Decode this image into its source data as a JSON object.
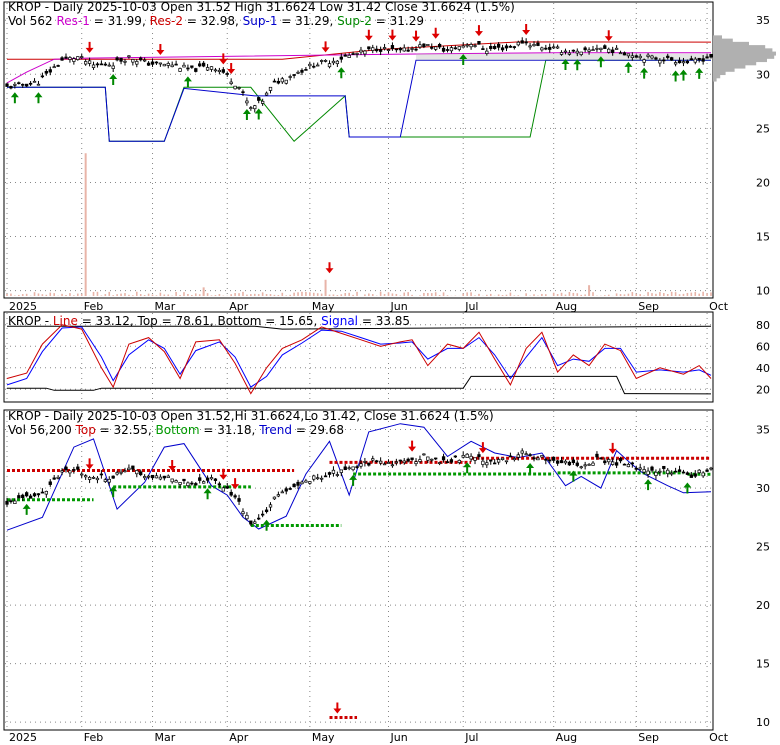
{
  "colors": {
    "candle": "#000000",
    "res1": "#cc00cc",
    "res2": "#cc0000",
    "sup1": "#0000cc",
    "sup2": "#008800",
    "macd_line": "#cc0000",
    "signal": "#0000ff",
    "level": "#000000",
    "top": "#cc0000",
    "bottom": "#009900",
    "trend": "#0000cc",
    "volume": "#e8b4a8",
    "grid": "#888888",
    "up_arrow": "#008800",
    "down_arrow": "#dd0000"
  },
  "panels": {
    "price": {
      "header": [
        {
          "text": "KROP - Daily 2025-10-03 Open 31.52  High 31.6624  Low 31.42  Close 31.6624 (1.5%)",
          "color": "#000000"
        }
      ],
      "line2": [
        {
          "text": "Vol 562 ",
          "color": "#000000"
        },
        {
          "text": "Res-1",
          "color": "#cc00cc"
        },
        {
          "text": " = 31.99, ",
          "color": "#000000"
        },
        {
          "text": "Res-2",
          "color": "#cc0000"
        },
        {
          "text": " = 32.98, ",
          "color": "#000000"
        },
        {
          "text": "Sup-1",
          "color": "#0000cc"
        },
        {
          "text": " = 31.29, ",
          "color": "#000000"
        },
        {
          "text": "Sup-2",
          "color": "#008800"
        },
        {
          "text": " = 31.29",
          "color": "#000000"
        }
      ]
    },
    "macd": {
      "header": [
        {
          "text": "KROP - ",
          "color": "#000000"
        },
        {
          "text": "Line",
          "color": "#cc0000"
        },
        {
          "text": " = 33.12, Top = 78.61, Bottom = 15.65, ",
          "color": "#000000"
        },
        {
          "text": "Signal",
          "color": "#0000ff"
        },
        {
          "text": " = 33.85",
          "color": "#000000"
        }
      ]
    },
    "trend": {
      "header": [
        {
          "text": "KROP - Daily 2025-10-03 Open 31.52,Hi 31.6624,Lo 31.42, Close 31.6624 (1.5%)",
          "color": "#000000"
        }
      ],
      "line2": [
        {
          "text": "Vol 56,200 ",
          "color": "#000000"
        },
        {
          "text": "Top",
          "color": "#cc0000"
        },
        {
          "text": " = 32.55, ",
          "color": "#000000"
        },
        {
          "text": "Bottom",
          "color": "#009900"
        },
        {
          "text": " = 31.18, ",
          "color": "#000000"
        },
        {
          "text": "Trend",
          "color": "#0000cc"
        },
        {
          "text": " = 29.68",
          "color": "#000000"
        }
      ]
    }
  },
  "chart_data": [
    {
      "type": "candlestick",
      "panel": "price",
      "symbol": "KROP",
      "yticks": [
        10,
        15,
        20,
        25,
        30,
        35
      ],
      "ylim": [
        9.5,
        36.5
      ],
      "month_labels": [
        "2025",
        "Feb",
        "Mar",
        "Apr",
        "May",
        "Jun",
        "Jul",
        "Aug",
        "Sep",
        "Oct"
      ],
      "month_ticks": [
        0,
        19,
        37,
        56,
        77,
        97,
        116,
        139,
        160,
        178
      ],
      "n_days": 180,
      "anchors": [
        [
          0,
          28.8
        ],
        [
          8,
          29.3
        ],
        [
          14,
          31.3
        ],
        [
          18,
          31.6
        ],
        [
          22,
          30.8
        ],
        [
          27,
          31.0
        ],
        [
          31,
          31.6
        ],
        [
          36,
          31.0
        ],
        [
          42,
          30.9
        ],
        [
          47,
          30.4
        ],
        [
          52,
          30.8
        ],
        [
          55,
          30.2
        ],
        [
          59,
          28.8
        ],
        [
          62,
          26.8
        ],
        [
          65,
          27.6
        ],
        [
          68,
          29.2
        ],
        [
          74,
          30.2
        ],
        [
          78,
          30.9
        ],
        [
          82,
          31.2
        ],
        [
          86,
          31.6
        ],
        [
          90,
          32.0
        ],
        [
          94,
          32.4
        ],
        [
          100,
          32.1
        ],
        [
          106,
          32.7
        ],
        [
          112,
          32.2
        ],
        [
          118,
          32.9
        ],
        [
          122,
          32.3
        ],
        [
          128,
          32.5
        ],
        [
          131,
          33.0
        ],
        [
          135,
          32.6
        ],
        [
          140,
          32.3
        ],
        [
          146,
          31.9
        ],
        [
          150,
          32.5
        ],
        [
          156,
          32.1
        ],
        [
          162,
          31.6
        ],
        [
          168,
          31.4
        ],
        [
          174,
          31.1
        ],
        [
          179,
          31.66
        ]
      ],
      "res1": [
        [
          0,
          29.2
        ],
        [
          5,
          30.2
        ],
        [
          12,
          31.4
        ],
        [
          20,
          31.5
        ],
        [
          110,
          31.9
        ],
        [
          140,
          31.99
        ],
        [
          179,
          31.99
        ]
      ],
      "res2": [
        [
          0,
          31.4
        ],
        [
          70,
          31.4
        ],
        [
          95,
          32.3
        ],
        [
          130,
          33.0
        ],
        [
          179,
          32.98
        ]
      ],
      "sup1": [
        [
          0,
          28.8
        ],
        [
          25,
          28.8
        ],
        [
          26,
          23.8
        ],
        [
          40,
          23.8
        ],
        [
          45,
          28.7
        ],
        [
          63,
          28.0
        ],
        [
          86,
          28.0
        ],
        [
          87,
          24.2
        ],
        [
          100,
          24.2
        ],
        [
          104,
          31.3
        ],
        [
          179,
          31.29
        ]
      ],
      "sup2": [
        [
          0,
          28.8
        ],
        [
          25,
          28.8
        ],
        [
          26,
          23.8
        ],
        [
          40,
          23.8
        ],
        [
          45,
          28.8
        ],
        [
          62,
          28.8
        ],
        [
          73,
          23.8
        ],
        [
          86,
          28.0
        ],
        [
          87,
          24.2
        ],
        [
          133,
          24.2
        ],
        [
          137,
          31.3
        ],
        [
          179,
          31.29
        ]
      ],
      "volume_spikes": [
        [
          20,
          22.7
        ],
        [
          81,
          11.0
        ],
        [
          50,
          10.3
        ],
        [
          148,
          10.5
        ]
      ],
      "up_arrows": [
        2,
        8,
        27,
        46,
        61,
        64,
        85,
        116,
        142,
        145,
        151,
        158,
        162,
        170,
        172,
        176
      ],
      "down_arrows": [
        21,
        39,
        55,
        57,
        81,
        92,
        98,
        104,
        109,
        120,
        132,
        153
      ]
    },
    {
      "type": "line",
      "panel": "macd",
      "yticks": [
        20,
        40,
        60,
        80
      ],
      "ylim": [
        10,
        90
      ],
      "top": 78.61,
      "bottom": 15.65,
      "line": 33.12,
      "signal": 33.85,
      "line_points": [
        [
          0,
          30
        ],
        [
          5,
          35
        ],
        [
          9,
          62
        ],
        [
          14,
          80
        ],
        [
          19,
          76
        ],
        [
          24,
          40
        ],
        [
          27,
          22
        ],
        [
          31,
          62
        ],
        [
          36,
          68
        ],
        [
          40,
          55
        ],
        [
          44,
          30
        ],
        [
          48,
          64
        ],
        [
          54,
          66
        ],
        [
          58,
          44
        ],
        [
          62,
          16
        ],
        [
          66,
          40
        ],
        [
          70,
          58
        ],
        [
          75,
          66
        ],
        [
          80,
          78
        ],
        [
          85,
          72
        ],
        [
          90,
          66
        ],
        [
          95,
          60
        ],
        [
          100,
          64
        ],
        [
          103,
          66
        ],
        [
          107,
          42
        ],
        [
          112,
          62
        ],
        [
          116,
          58
        ],
        [
          120,
          73
        ],
        [
          124,
          48
        ],
        [
          128,
          24
        ],
        [
          132,
          58
        ],
        [
          136,
          73
        ],
        [
          140,
          36
        ],
        [
          144,
          52
        ],
        [
          148,
          42
        ],
        [
          152,
          62
        ],
        [
          156,
          56
        ],
        [
          160,
          30
        ],
        [
          166,
          40
        ],
        [
          172,
          34
        ],
        [
          176,
          42
        ],
        [
          179,
          30
        ]
      ],
      "signal_points": [
        [
          0,
          24
        ],
        [
          5,
          30
        ],
        [
          9,
          55
        ],
        [
          14,
          77
        ],
        [
          19,
          78
        ],
        [
          24,
          50
        ],
        [
          27,
          28
        ],
        [
          31,
          52
        ],
        [
          36,
          66
        ],
        [
          40,
          58
        ],
        [
          44,
          34
        ],
        [
          48,
          56
        ],
        [
          54,
          64
        ],
        [
          58,
          50
        ],
        [
          62,
          22
        ],
        [
          66,
          32
        ],
        [
          70,
          52
        ],
        [
          75,
          63
        ],
        [
          80,
          75
        ],
        [
          85,
          74
        ],
        [
          90,
          68
        ],
        [
          95,
          62
        ],
        [
          100,
          63
        ],
        [
          103,
          64
        ],
        [
          107,
          48
        ],
        [
          112,
          58
        ],
        [
          116,
          58
        ],
        [
          120,
          68
        ],
        [
          124,
          52
        ],
        [
          128,
          30
        ],
        [
          132,
          50
        ],
        [
          136,
          68
        ],
        [
          140,
          42
        ],
        [
          144,
          48
        ],
        [
          148,
          46
        ],
        [
          152,
          58
        ],
        [
          156,
          58
        ],
        [
          160,
          36
        ],
        [
          166,
          38
        ],
        [
          172,
          36
        ],
        [
          176,
          38
        ],
        [
          179,
          33
        ]
      ],
      "top_points": [
        [
          0,
          78.6
        ],
        [
          55,
          78.6
        ],
        [
          63,
          78.6
        ],
        [
          70,
          76.0
        ],
        [
          179,
          78.61
        ]
      ],
      "bottom_points": [
        [
          0,
          21
        ],
        [
          10,
          21
        ],
        [
          12,
          19
        ],
        [
          22,
          19
        ],
        [
          24,
          21
        ],
        [
          116,
          21
        ],
        [
          118,
          32
        ],
        [
          155,
          32
        ],
        [
          157,
          16
        ],
        [
          179,
          15.65
        ]
      ]
    },
    {
      "type": "candlestick",
      "panel": "trend",
      "yticks": [
        10,
        15,
        20,
        25,
        30,
        35
      ],
      "ylim": [
        9.5,
        36.5
      ],
      "month_labels": [
        "2025",
        "Feb",
        "Mar",
        "Apr",
        "May",
        "Jun",
        "Jul",
        "Aug",
        "Sep",
        "Oct"
      ],
      "top_segments": [
        [
          0,
          29,
          31.5
        ],
        [
          0,
          73,
          31.5
        ],
        [
          82,
          118,
          32.2
        ],
        [
          118,
          179,
          32.55
        ]
      ],
      "bottom_segments": [
        [
          0,
          22,
          29.0
        ],
        [
          27,
          62,
          30.1
        ],
        [
          62,
          85,
          26.8
        ],
        [
          88,
          139,
          31.2
        ],
        [
          140,
          172,
          31.3
        ],
        [
          173,
          179,
          31.18
        ]
      ],
      "trend_points": [
        [
          0,
          26.4
        ],
        [
          9,
          27.5
        ],
        [
          17,
          33.5
        ],
        [
          22,
          34.2
        ],
        [
          28,
          28.2
        ],
        [
          35,
          30.5
        ],
        [
          40,
          33.5
        ],
        [
          45,
          33.8
        ],
        [
          52,
          30.2
        ],
        [
          56,
          29.4
        ],
        [
          60,
          27.5
        ],
        [
          64,
          26.5
        ],
        [
          71,
          27.6
        ],
        [
          76,
          31.2
        ],
        [
          82,
          34.0
        ],
        [
          87,
          29.4
        ],
        [
          92,
          34.8
        ],
        [
          100,
          35.5
        ],
        [
          106,
          35.2
        ],
        [
          112,
          32.7
        ],
        [
          118,
          34.0
        ],
        [
          124,
          33.0
        ],
        [
          130,
          32.6
        ],
        [
          136,
          33.0
        ],
        [
          142,
          30.2
        ],
        [
          146,
          31.0
        ],
        [
          151,
          30.0
        ],
        [
          155,
          33.2
        ],
        [
          159,
          32.0
        ],
        [
          162,
          31.2
        ],
        [
          168,
          30.2
        ],
        [
          172,
          29.6
        ],
        [
          179,
          29.68
        ]
      ],
      "up_arrows": [
        5,
        27,
        51,
        66,
        88,
        117,
        133,
        144,
        163,
        173
      ],
      "down_arrows": [
        21,
        42,
        55,
        58,
        103,
        121,
        154,
        83
      ],
      "lone_down": [
        84,
        10.4
      ]
    }
  ]
}
